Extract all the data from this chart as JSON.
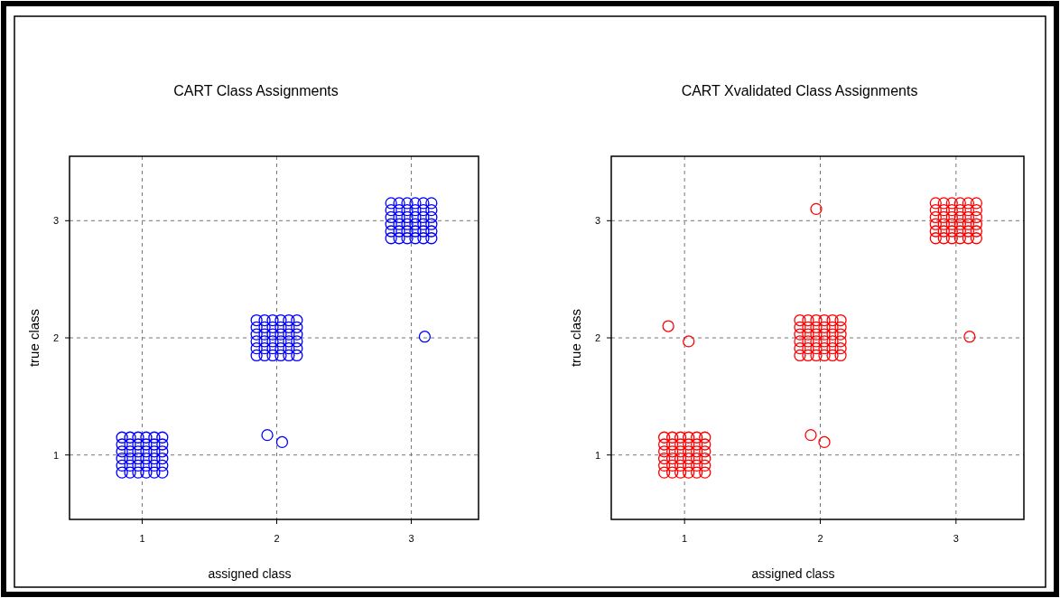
{
  "chart_data": [
    {
      "type": "scatter",
      "title": "CART Class Assignments",
      "xlabel": "assigned class",
      "ylabel": "true class",
      "xlim": [
        0.46,
        3.5
      ],
      "ylim": [
        0.45,
        3.55
      ],
      "xticks": [
        1,
        2,
        3
      ],
      "yticks": [
        1,
        2,
        3
      ],
      "grid": true,
      "marker": "circle",
      "series": [
        {
          "color": "#0000ff",
          "x": [
            0.85,
            0.91,
            0.97,
            1.03,
            1.09,
            1.15,
            0.85,
            0.91,
            0.97,
            1.03,
            1.09,
            1.15,
            0.85,
            0.91,
            0.97,
            1.03,
            1.09,
            1.15,
            0.85,
            0.91,
            0.97,
            1.03,
            1.09,
            1.15,
            0.85,
            0.91,
            0.97,
            1.03,
            1.09,
            1.15,
            0.85,
            0.91,
            0.97,
            1.03,
            1.09,
            1.15,
            1.85,
            1.91,
            1.97,
            2.03,
            2.09,
            2.15,
            1.85,
            1.91,
            1.97,
            2.03,
            2.09,
            2.15,
            1.85,
            1.91,
            1.97,
            2.03,
            2.09,
            2.15,
            1.85,
            1.91,
            1.97,
            2.03,
            2.09,
            2.15,
            1.85,
            1.91,
            1.97,
            2.03,
            2.09,
            2.15,
            1.85,
            1.91,
            1.97,
            2.03,
            2.09,
            2.15,
            2.85,
            2.91,
            2.97,
            3.03,
            3.09,
            3.15,
            2.85,
            2.91,
            2.97,
            3.03,
            3.09,
            3.15,
            2.85,
            2.91,
            2.97,
            3.03,
            3.09,
            3.15,
            2.85,
            2.91,
            2.97,
            3.03,
            3.09,
            3.15,
            2.85,
            2.91,
            2.97,
            3.03,
            3.09,
            3.15,
            2.85,
            2.91,
            2.97,
            3.03,
            3.09,
            3.15,
            1.93,
            2.04,
            3.1
          ],
          "values": [
            0.85,
            0.85,
            0.85,
            0.85,
            0.85,
            0.85,
            0.91,
            0.91,
            0.91,
            0.91,
            0.91,
            0.91,
            0.97,
            0.97,
            0.97,
            0.97,
            0.97,
            0.97,
            1.03,
            1.03,
            1.03,
            1.03,
            1.03,
            1.03,
            1.09,
            1.09,
            1.09,
            1.09,
            1.09,
            1.09,
            1.15,
            1.15,
            1.15,
            1.15,
            1.15,
            1.15,
            1.85,
            1.85,
            1.85,
            1.85,
            1.85,
            1.85,
            1.91,
            1.91,
            1.91,
            1.91,
            1.91,
            1.91,
            1.97,
            1.97,
            1.97,
            1.97,
            1.97,
            1.97,
            2.03,
            2.03,
            2.03,
            2.03,
            2.03,
            2.03,
            2.09,
            2.09,
            2.09,
            2.09,
            2.09,
            2.09,
            2.15,
            2.15,
            2.15,
            2.15,
            2.15,
            2.15,
            2.85,
            2.85,
            2.85,
            2.85,
            2.85,
            2.85,
            2.91,
            2.91,
            2.91,
            2.91,
            2.91,
            2.91,
            2.97,
            2.97,
            2.97,
            2.97,
            2.97,
            2.97,
            3.03,
            3.03,
            3.03,
            3.03,
            3.03,
            3.03,
            3.09,
            3.09,
            3.09,
            3.09,
            3.09,
            3.09,
            3.15,
            3.15,
            3.15,
            3.15,
            3.15,
            3.15,
            1.17,
            1.11,
            2.01
          ]
        }
      ]
    },
    {
      "type": "scatter",
      "title": "CART Xvalidated Class Assignments",
      "xlabel": "assigned class",
      "ylabel": "true class",
      "xlim": [
        0.46,
        3.5
      ],
      "ylim": [
        0.45,
        3.55
      ],
      "xticks": [
        1,
        2,
        3
      ],
      "yticks": [
        1,
        2,
        3
      ],
      "grid": true,
      "marker": "circle",
      "series": [
        {
          "color": "#ff0000",
          "x": [
            0.85,
            0.91,
            0.97,
            1.03,
            1.09,
            1.15,
            0.85,
            0.91,
            0.97,
            1.03,
            1.09,
            1.15,
            0.85,
            0.91,
            0.97,
            1.03,
            1.09,
            1.15,
            0.85,
            0.91,
            0.97,
            1.03,
            1.09,
            1.15,
            0.85,
            0.91,
            0.97,
            1.03,
            1.09,
            1.15,
            0.85,
            0.91,
            0.97,
            1.03,
            1.09,
            1.15,
            1.85,
            1.91,
            1.97,
            2.03,
            2.09,
            2.15,
            1.85,
            1.91,
            1.97,
            2.03,
            2.09,
            2.15,
            1.85,
            1.91,
            1.97,
            2.03,
            2.09,
            2.15,
            1.85,
            1.91,
            1.97,
            2.03,
            2.09,
            2.15,
            1.85,
            1.91,
            1.97,
            2.03,
            2.09,
            2.15,
            1.85,
            1.91,
            1.97,
            2.03,
            2.09,
            2.15,
            2.85,
            2.91,
            2.97,
            3.03,
            3.09,
            3.15,
            2.85,
            2.91,
            2.97,
            3.03,
            3.09,
            3.15,
            2.85,
            2.91,
            2.97,
            3.03,
            3.09,
            3.15,
            2.85,
            2.91,
            2.97,
            3.03,
            3.09,
            3.15,
            2.85,
            2.91,
            2.97,
            3.03,
            3.09,
            3.15,
            2.85,
            2.91,
            2.97,
            3.03,
            3.09,
            3.15,
            0.88,
            1.03,
            1.97,
            1.93,
            2.03,
            3.1
          ],
          "values": [
            0.85,
            0.85,
            0.85,
            0.85,
            0.85,
            0.85,
            0.91,
            0.91,
            0.91,
            0.91,
            0.91,
            0.91,
            0.97,
            0.97,
            0.97,
            0.97,
            0.97,
            0.97,
            1.03,
            1.03,
            1.03,
            1.03,
            1.03,
            1.03,
            1.09,
            1.09,
            1.09,
            1.09,
            1.09,
            1.09,
            1.15,
            1.15,
            1.15,
            1.15,
            1.15,
            1.15,
            1.85,
            1.85,
            1.85,
            1.85,
            1.85,
            1.85,
            1.91,
            1.91,
            1.91,
            1.91,
            1.91,
            1.91,
            1.97,
            1.97,
            1.97,
            1.97,
            1.97,
            1.97,
            2.03,
            2.03,
            2.03,
            2.03,
            2.03,
            2.03,
            2.09,
            2.09,
            2.09,
            2.09,
            2.09,
            2.09,
            2.15,
            2.15,
            2.15,
            2.15,
            2.15,
            2.15,
            2.85,
            2.85,
            2.85,
            2.85,
            2.85,
            2.85,
            2.91,
            2.91,
            2.91,
            2.91,
            2.91,
            2.91,
            2.97,
            2.97,
            2.97,
            2.97,
            2.97,
            2.97,
            3.03,
            3.03,
            3.03,
            3.03,
            3.03,
            3.03,
            3.09,
            3.09,
            3.09,
            3.09,
            3.09,
            3.09,
            3.15,
            3.15,
            3.15,
            3.15,
            3.15,
            3.15,
            2.1,
            1.97,
            3.1,
            1.17,
            1.11,
            2.01
          ]
        }
      ]
    }
  ]
}
